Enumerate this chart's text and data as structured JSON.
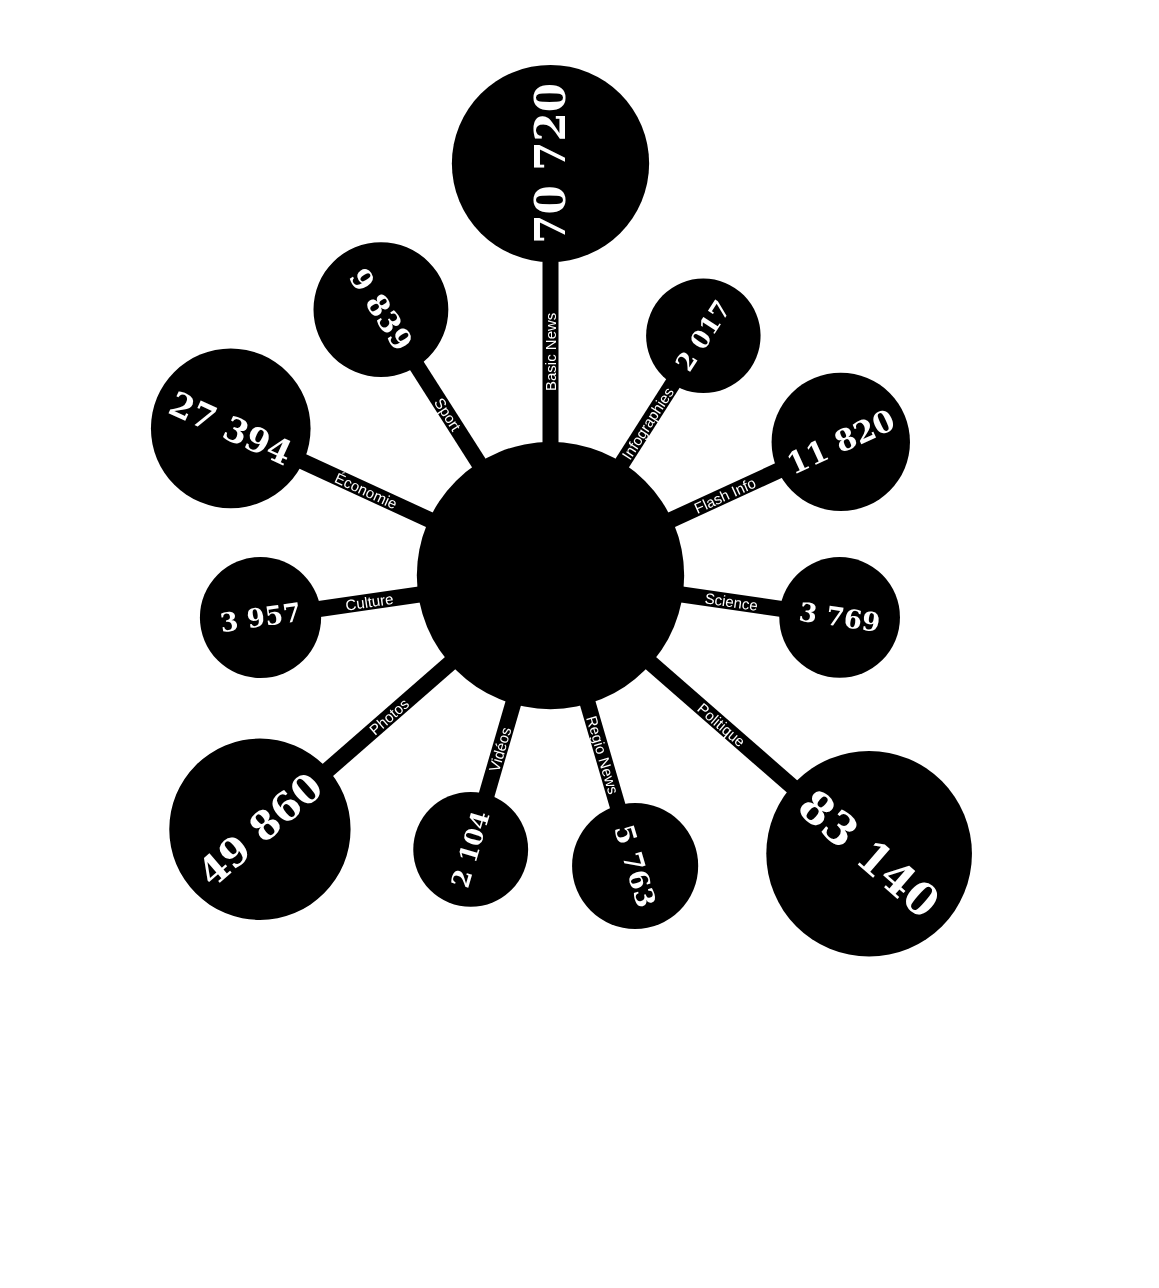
{
  "chart_data": {
    "type": "other",
    "categories": [
      "Basic News",
      "Infographies",
      "Flash Info",
      "Science",
      "Politique",
      "Regio News",
      "Vidéos",
      "Photos",
      "Culture",
      "Économie",
      "Sport"
    ],
    "values": [
      70720,
      2017,
      11820,
      3769,
      83140,
      5763,
      2104,
      49860,
      3957,
      27394,
      9839
    ],
    "color": "#000000",
    "data_labels": true
  }
}
